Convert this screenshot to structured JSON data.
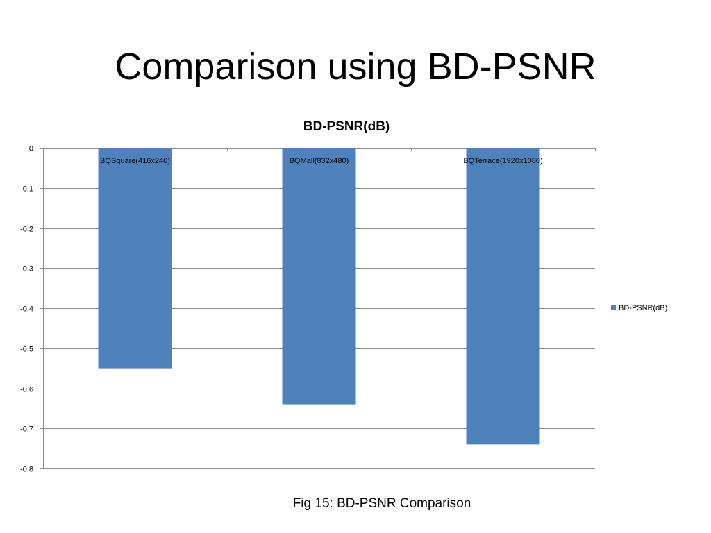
{
  "slide": {
    "title": "Comparison using BD-PSNR",
    "caption": "Fig 15: BD-PSNR Comparison"
  },
  "chart_data": {
    "type": "bar",
    "title": "BD-PSNR(dB)",
    "categories": [
      "BQSquare(416x240)",
      "BQMall(832x480)",
      "BQTerrace(1920x1080)"
    ],
    "series": [
      {
        "name": "BD-PSNR(dB)",
        "values": [
          -0.55,
          -0.64,
          -0.74
        ],
        "color": "#4f81bd"
      }
    ],
    "ylim": [
      -0.8,
      0
    ],
    "yticks": [
      0,
      -0.1,
      -0.2,
      -0.3,
      -0.4,
      -0.5,
      -0.6,
      -0.7,
      -0.8
    ],
    "ytick_labels": [
      "0",
      "-0.1",
      "-0.2",
      "-0.3",
      "-0.4",
      "-0.5",
      "-0.6",
      "-0.7",
      "-0.8"
    ],
    "xlabel": "",
    "ylabel": "",
    "grid": true,
    "legend": "right",
    "category_labels_position": "top"
  }
}
